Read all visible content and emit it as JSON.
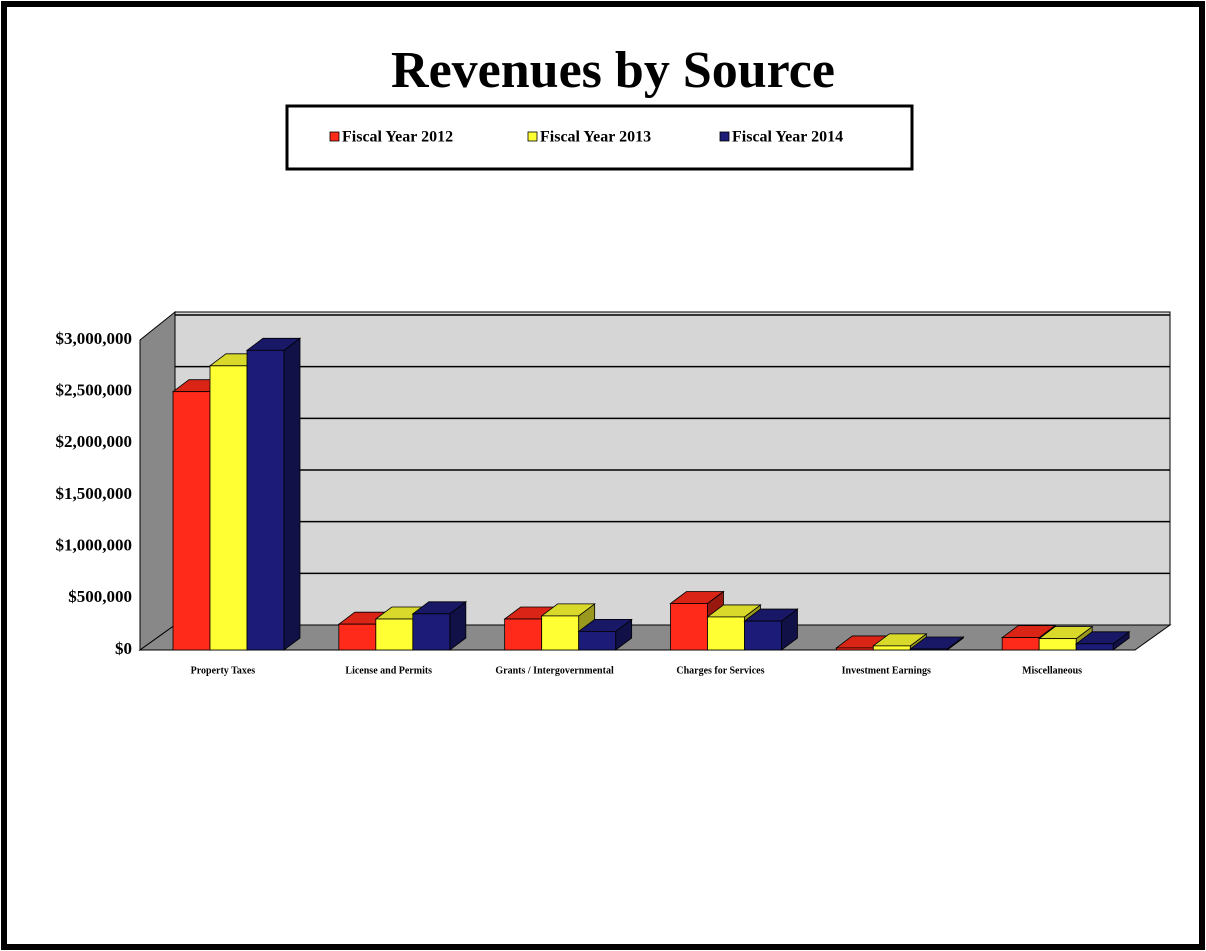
{
  "chart_data": {
    "type": "bar3d",
    "title": "Revenues by Source",
    "categories": [
      "Property Taxes",
      "License and Permits",
      "Grants / Intergovernmental",
      "Charges for Services",
      "Investment Earnings",
      "Miscellaneous"
    ],
    "series": [
      {
        "name": "Fiscal Year 2012",
        "color": "#ff2a1a",
        "values": [
          2500000,
          250000,
          300000,
          450000,
          20000,
          120000
        ]
      },
      {
        "name": "Fiscal Year 2013",
        "color": "#ffff33",
        "values": [
          2750000,
          300000,
          330000,
          320000,
          40000,
          110000
        ]
      },
      {
        "name": "Fiscal Year 2014",
        "color": "#1c1c78",
        "values": [
          2900000,
          350000,
          180000,
          280000,
          10000,
          60000
        ]
      }
    ],
    "ylim": [
      0,
      3000000
    ],
    "yticks": [
      {
        "value": 0,
        "label": "$0"
      },
      {
        "value": 500000,
        "label": "$500,000"
      },
      {
        "value": 1000000,
        "label": "$1,000,000"
      },
      {
        "value": 1500000,
        "label": "$1,500,000"
      },
      {
        "value": 2000000,
        "label": "$2,000,000"
      },
      {
        "value": 2500000,
        "label": "$2,500,000"
      },
      {
        "value": 3000000,
        "label": "$3,000,000"
      }
    ],
    "grid": true
  }
}
